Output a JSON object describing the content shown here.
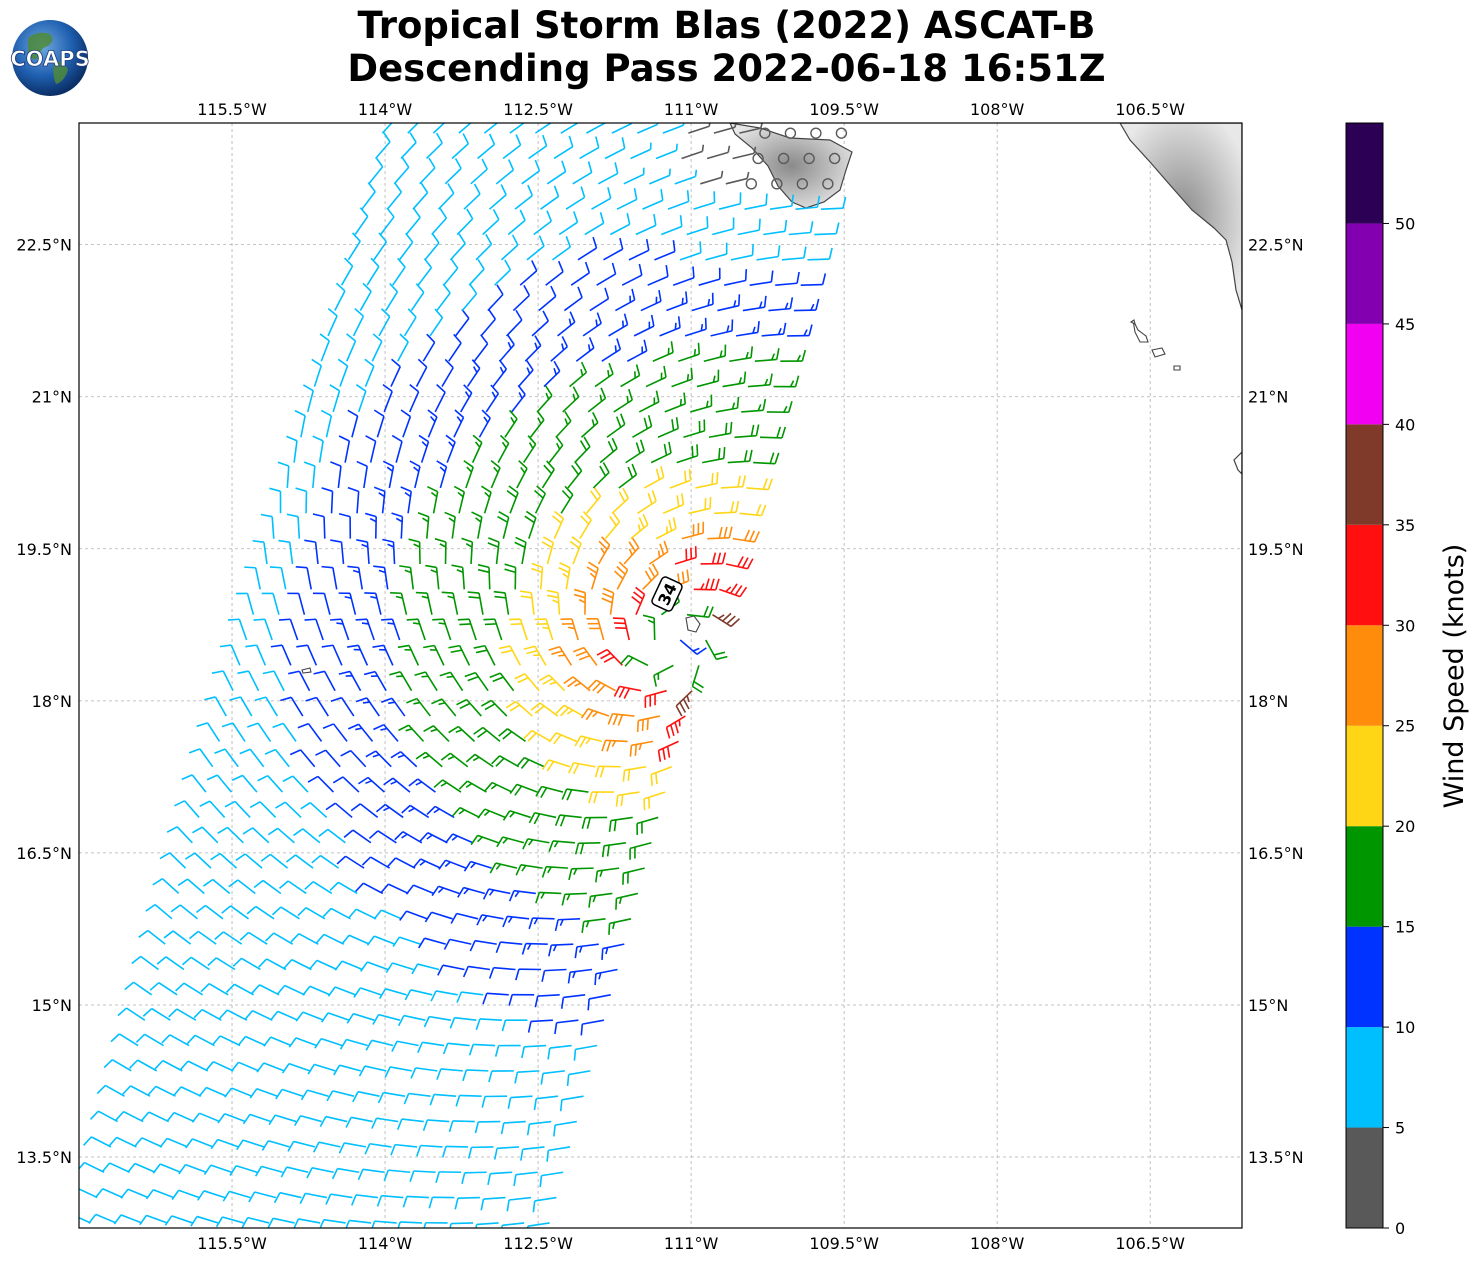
{
  "header": {
    "title_line1": "Tropical Storm Blas (2022) ASCAT-B",
    "title_line2": "Descending Pass 2022-06-18 16:51Z",
    "logo_text": "COAPS"
  },
  "map": {
    "lon_labels": [
      "115.5°W",
      "114°W",
      "112.5°W",
      "111°W",
      "109.5°W",
      "108°W",
      "106.5°W"
    ],
    "lat_labels": [
      "22.5°N",
      "21°N",
      "19.5°N",
      "18°N",
      "16.5°N",
      "15°N",
      "13.5°N"
    ],
    "lon_values": [
      -115.5,
      -114,
      -112.5,
      -111,
      -109.5,
      -108,
      -106.5
    ],
    "lat_values": [
      22.5,
      21,
      19.5,
      18,
      16.5,
      15,
      13.5
    ],
    "lon_range": [
      -117,
      -105.6
    ],
    "lat_range": [
      12.8,
      23.7
    ],
    "grid": true,
    "storm_marker": {
      "label": "34",
      "lon": -111.35,
      "lat": 19.1
    },
    "swath": {
      "left_edge_lon_at_bottom": -116.9,
      "left_edge_lon_at_top": -114.0,
      "right_edge_lon_at_bottom": -112.2,
      "right_edge_lon_at_top": -109.4
    },
    "colors": {
      "land": "#ffffff",
      "coastline": "#444444",
      "gridline": "#b0b0b0"
    }
  },
  "colorbar": {
    "label": "Wind Speed (knots)",
    "ticks": [
      "0",
      "5",
      "10",
      "15",
      "20",
      "25",
      "30",
      "35",
      "40",
      "45",
      "50"
    ],
    "bins": [
      {
        "min": 0,
        "max": 5,
        "color": "#595959"
      },
      {
        "min": 5,
        "max": 10,
        "color": "#00bfff"
      },
      {
        "min": 10,
        "max": 15,
        "color": "#0033ff"
      },
      {
        "min": 15,
        "max": 20,
        "color": "#009600"
      },
      {
        "min": 20,
        "max": 25,
        "color": "#ffd616"
      },
      {
        "min": 25,
        "max": 30,
        "color": "#ff8c0a"
      },
      {
        "min": 30,
        "max": 35,
        "color": "#ff0f0f"
      },
      {
        "min": 35,
        "max": 40,
        "color": "#803a2a"
      },
      {
        "min": 40,
        "max": 45,
        "color": "#f200f2"
      },
      {
        "min": 45,
        "max": 50,
        "color": "#8300b0"
      },
      {
        "min": 50,
        "max": 55,
        "color": "#2b0055"
      }
    ]
  }
}
